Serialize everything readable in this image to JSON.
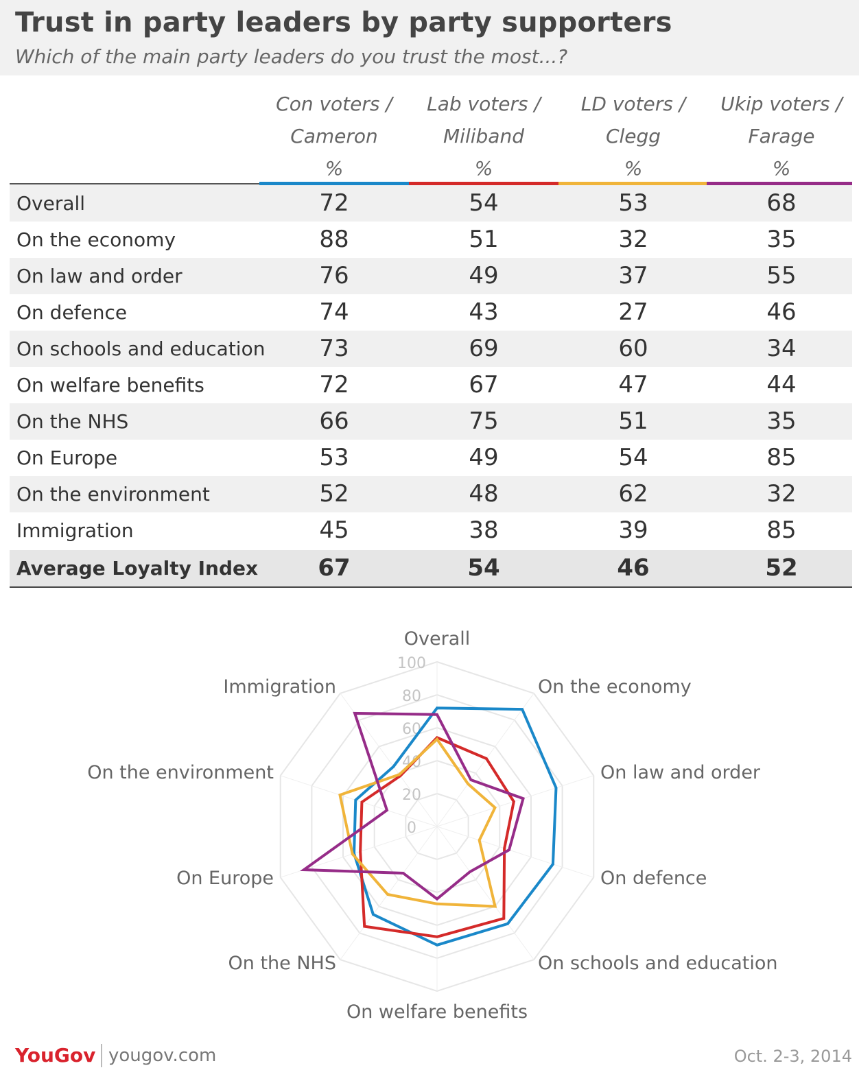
{
  "header": {
    "title": "Trust in party leaders by party supporters",
    "subtitle": "Which of the main party leaders do you trust the most...?"
  },
  "table": {
    "columns": [
      {
        "line1": "Con voters /",
        "line2": "Cameron",
        "line3": "%",
        "color": "#1a88c9"
      },
      {
        "line1": "Lab voters /",
        "line2": "Miliband",
        "line3": "%",
        "color": "#d42a29"
      },
      {
        "line1": "LD voters /",
        "line2": "Clegg",
        "line3": "%",
        "color": "#f0b43a"
      },
      {
        "line1": "Ukip voters /",
        "line2": "Farage",
        "line3": "%",
        "color": "#962c88"
      }
    ],
    "rows": [
      {
        "label": "Overall",
        "values": [
          "72",
          "54",
          "53",
          "68"
        ]
      },
      {
        "label": "On the economy",
        "values": [
          "88",
          "51",
          "32",
          "35"
        ]
      },
      {
        "label": "On law and order",
        "values": [
          "76",
          "49",
          "37",
          "55"
        ]
      },
      {
        "label": "On defence",
        "values": [
          "74",
          "43",
          "27",
          "46"
        ]
      },
      {
        "label": "On schools and education",
        "values": [
          "73",
          "69",
          "60",
          "34"
        ]
      },
      {
        "label": "On welfare benefits",
        "values": [
          "72",
          "67",
          "47",
          "44"
        ]
      },
      {
        "label": "On the NHS",
        "values": [
          "66",
          "75",
          "51",
          "35"
        ]
      },
      {
        "label": "On Europe",
        "values": [
          "53",
          "49",
          "54",
          "85"
        ]
      },
      {
        "label": "On the environment",
        "values": [
          "52",
          "48",
          "62",
          "32"
        ]
      },
      {
        "label": "Immigration",
        "values": [
          "45",
          "38",
          "39",
          "85"
        ]
      }
    ],
    "average": {
      "label": "Average Loyalty Index",
      "values": [
        "67",
        "54",
        "46",
        "52"
      ]
    }
  },
  "chart_data": {
    "type": "radar",
    "categories": [
      "Overall",
      "On the economy",
      "On law and order",
      "On defence",
      "On schools and education",
      "On welfare benefits",
      "On the NHS",
      "On Europe",
      "On the environment",
      "Immigration"
    ],
    "series": [
      {
        "name": "Con voters / Cameron",
        "values": [
          72,
          88,
          76,
          74,
          73,
          72,
          66,
          53,
          52,
          45
        ],
        "color": "#1a88c9"
      },
      {
        "name": "Lab voters / Miliband",
        "values": [
          54,
          51,
          49,
          43,
          69,
          67,
          75,
          49,
          48,
          38
        ],
        "color": "#d42a29"
      },
      {
        "name": "LD voters / Clegg",
        "values": [
          53,
          32,
          37,
          27,
          60,
          47,
          51,
          54,
          62,
          39
        ],
        "color": "#f0b43a"
      },
      {
        "name": "Ukip voters / Farage",
        "values": [
          68,
          35,
          55,
          46,
          34,
          44,
          35,
          85,
          32,
          85
        ],
        "color": "#962c88"
      }
    ],
    "radial_ticks": [
      "0",
      "20",
      "40",
      "60",
      "80",
      "100"
    ],
    "range": [
      0,
      100
    ],
    "grid": true
  },
  "footer": {
    "logo": "YouGov",
    "url": "yougov.com",
    "date": "Oct. 2-3, 2014"
  }
}
